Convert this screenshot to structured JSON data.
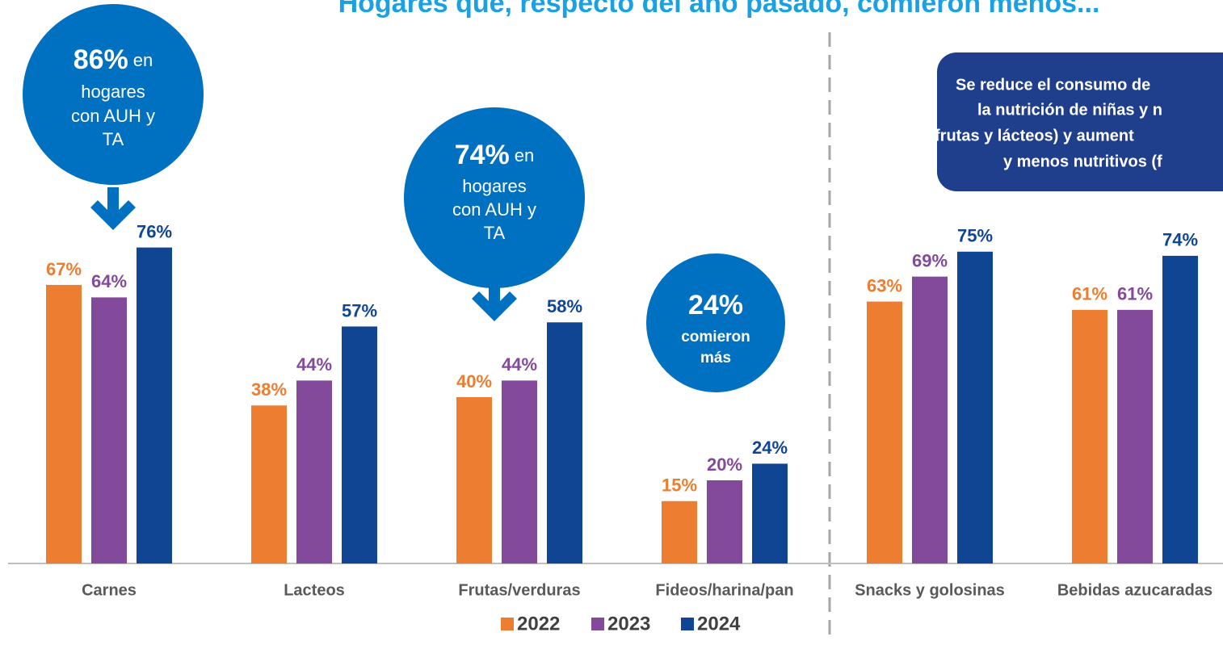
{
  "chart_data": {
    "type": "bar",
    "title": "Hogares que, respecto del año pasado, comieron menos...",
    "categories": [
      "Carnes",
      "Lacteos",
      "Frutas/verduras",
      "Fideos/harina/pan",
      "Snacks y golosinas",
      "Bebidas azucaradas"
    ],
    "series": [
      {
        "name": "2022",
        "color": "#ed7d31",
        "values": [
          67,
          38,
          40,
          15,
          63,
          61
        ],
        "value_labels": [
          "67%",
          "38%",
          "40%",
          "15%",
          "63%",
          "61%"
        ]
      },
      {
        "name": "2023",
        "color": "#834a9b",
        "values": [
          64,
          44,
          44,
          20,
          69,
          61
        ],
        "value_labels": [
          "64%",
          "44%",
          "44%",
          "20%",
          "69%",
          "61%"
        ]
      },
      {
        "name": "2024",
        "color": "#0f4593",
        "values": [
          76,
          57,
          58,
          24,
          75,
          74
        ],
        "value_labels": [
          "76%",
          "57%",
          "58%",
          "24%",
          "75%",
          "74%"
        ]
      }
    ],
    "ylim": [
      0,
      100
    ],
    "annotations": [
      {
        "headline": "86%",
        "lines": [
          "en",
          "hogares",
          "con AUH y",
          "TA"
        ]
      },
      {
        "headline": "74%",
        "lines": [
          "en",
          "hogares",
          "con AUH y",
          "TA"
        ]
      },
      {
        "headline": "24%",
        "lines": [
          "comieron",
          "más"
        ]
      }
    ],
    "note_box": [
      "Se reduce el consumo de",
      "la nutrición de niñas y n",
      "frutas y lácteos) y aument",
      "y menos nutritivos (f"
    ]
  }
}
